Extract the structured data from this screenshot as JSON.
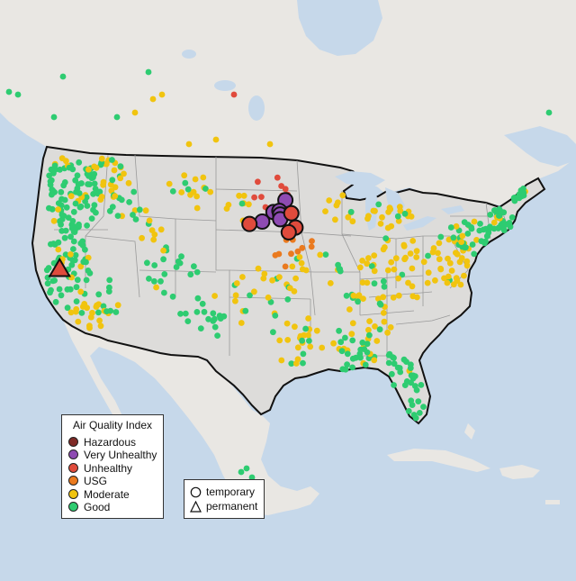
{
  "map": {
    "ocean_color": "#c6d8ea",
    "foreign_land_color": "#e9e7e3",
    "us_land_color": "#dddcda",
    "border_color": "#111111",
    "state_border_color": "#9a9a9a"
  },
  "legend": {
    "title": "Air Quality Index",
    "categories": [
      {
        "label": "Hazardous",
        "color": "#7e2a26"
      },
      {
        "label": "Very Unhealthy",
        "color": "#8e4bb2"
      },
      {
        "label": "Unhealthy",
        "color": "#e04b3c"
      },
      {
        "label": "USG",
        "color": "#ea7a1f"
      },
      {
        "label": "Moderate",
        "color": "#f1c40f"
      },
      {
        "label": "Good",
        "color": "#2ecc71"
      }
    ]
  },
  "type_legend": {
    "items": [
      {
        "label": "temporary",
        "shape": "circle"
      },
      {
        "label": "permanent",
        "shape": "triangle"
      }
    ]
  },
  "monitors": {
    "large_circles": [
      {
        "category": "Very Unhealthy",
        "lon": -96.6,
        "lat": 45.8
      },
      {
        "category": "Very Unhealthy",
        "lon": -98.0,
        "lat": 44.8
      },
      {
        "category": "Very Unhealthy",
        "lon": -97.3,
        "lat": 44.9
      },
      {
        "category": "Very Unhealthy",
        "lon": -97.2,
        "lat": 44.6
      },
      {
        "category": "Very Unhealthy",
        "lon": -97.2,
        "lat": 44.2
      },
      {
        "category": "Very Unhealthy",
        "lon": -99.3,
        "lat": 44.0
      },
      {
        "category": "Unhealthy",
        "lon": -100.8,
        "lat": 43.8
      },
      {
        "category": "Unhealthy",
        "lon": -95.9,
        "lat": 44.7
      },
      {
        "category": "Unhealthy",
        "lon": -95.4,
        "lat": 43.5
      },
      {
        "category": "Unhealthy",
        "lon": -96.2,
        "lat": 43.1
      }
    ],
    "large_triangles": [
      {
        "category": "Unhealthy",
        "lon": -123.0,
        "lat": 40.0
      }
    ]
  }
}
